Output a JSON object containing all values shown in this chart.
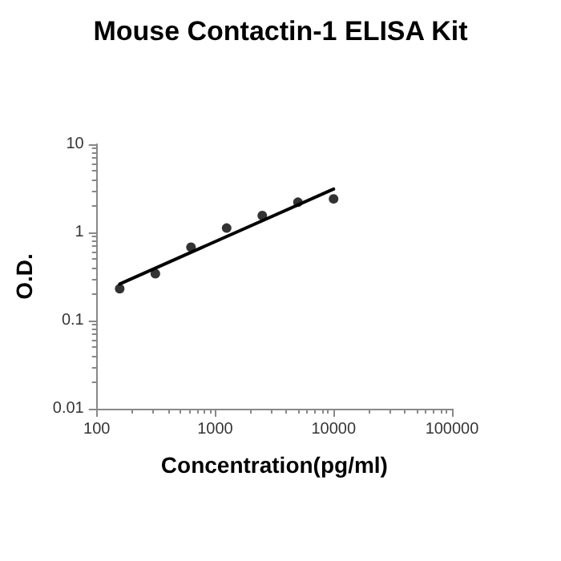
{
  "chart_data": {
    "type": "scatter",
    "title": "Mouse Contactin-1 ELISA Kit",
    "xlabel": "Concentration(pg/ml)",
    "ylabel": "O.D.",
    "log": "xy",
    "grid": false,
    "xlim": [
      100,
      100000
    ],
    "xticks": [
      100,
      1000,
      10000,
      100000
    ],
    "ylim": [
      0.01,
      10
    ],
    "yticks": [
      0.01,
      0.1,
      1,
      10
    ],
    "series": [
      {
        "color": "#000000",
        "marker": "circle",
        "x": [
          156.25,
          312.5,
          625,
          1250,
          2500,
          5000,
          10000
        ],
        "values": [
          0.23,
          0.34,
          0.68,
          1.12,
          1.55,
          2.2,
          2.4
        ]
      },
      {
        "type": "line",
        "color": "#000000",
        "marker": "none",
        "line_style": "solid",
        "x": [
          156.25,
          10000
        ],
        "values": [
          0.26,
          3.1
        ]
      }
    ]
  }
}
